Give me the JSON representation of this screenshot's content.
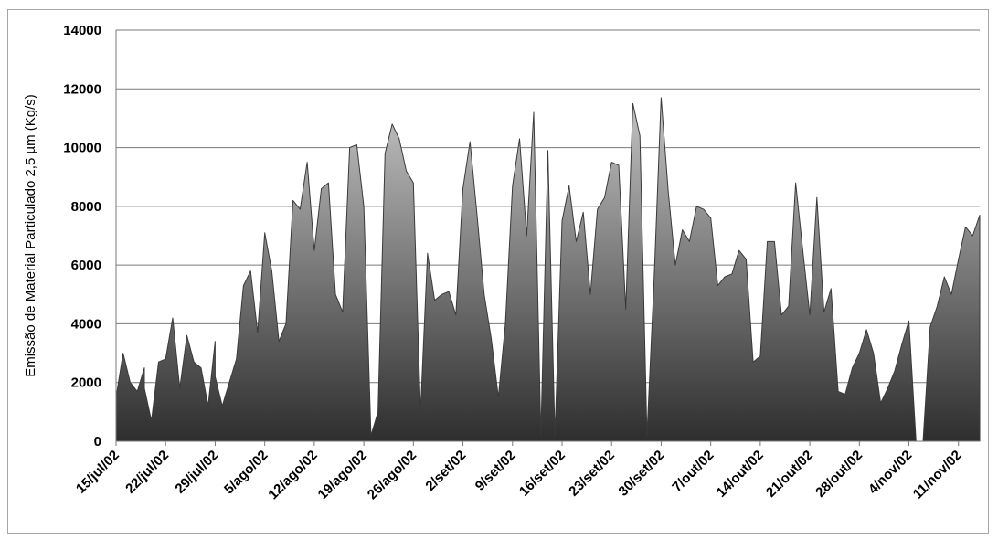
{
  "chart_data": {
    "type": "area",
    "title": "",
    "xlabel": "",
    "ylabel": "Emissão de Material Particulado 2,5 µm (Kg/s)",
    "ylim": [
      0,
      14000
    ],
    "yticks": [
      "0",
      "2000",
      "4000",
      "6000",
      "8000",
      "10000",
      "12000",
      "14000"
    ],
    "grid": true,
    "legend": "none",
    "x_start": "15/jul/02",
    "x_end": "14/nov/02",
    "xticks": [
      "15/jul/02",
      "22/jul/02",
      "29/jul/02",
      "5/ago/02",
      "12/ago/02",
      "19/ago/02",
      "26/ago/02",
      "2/set/02",
      "9/set/02",
      "16/set/02",
      "23/set/02",
      "30/set/02",
      "7/out/02",
      "14/out/02",
      "21/out/02",
      "28/out/02",
      "4/nov/02",
      "11/nov/02"
    ],
    "colors": {
      "fill_top": "#c4c4c4",
      "fill_bottom": "#2e2e2e",
      "edge": "#3a3a3a"
    },
    "series": [
      {
        "points": [
          [
            "15/jul/02",
            2200
          ],
          [
            "15/jul/02",
            1500
          ],
          [
            "16/jul/02",
            3000
          ],
          [
            "17/jul/02",
            2000
          ],
          [
            "18/jul/02",
            1700
          ],
          [
            "19/jul/02",
            2500
          ],
          [
            "19/jul/02",
            1800
          ],
          [
            "20/jul/02",
            700
          ],
          [
            "21/jul/02",
            2700
          ],
          [
            "22/jul/02",
            2800
          ],
          [
            "23/jul/02",
            4200
          ],
          [
            "24/jul/02",
            1800
          ],
          [
            "25/jul/02",
            3600
          ],
          [
            "26/jul/02",
            2700
          ],
          [
            "27/jul/02",
            2500
          ],
          [
            "28/jul/02",
            1200
          ],
          [
            "29/jul/02",
            3400
          ],
          [
            "29/jul/02",
            2200
          ],
          [
            "30/jul/02",
            1200
          ],
          [
            "31/jul/02",
            2000
          ],
          [
            "1/ago/02",
            2800
          ],
          [
            "2/ago/02",
            5300
          ],
          [
            "3/ago/02",
            5800
          ],
          [
            "4/ago/02",
            3700
          ],
          [
            "5/ago/02",
            7100
          ],
          [
            "6/ago/02",
            5800
          ],
          [
            "7/ago/02",
            3400
          ],
          [
            "8/ago/02",
            4000
          ],
          [
            "9/ago/02",
            8200
          ],
          [
            "10/ago/02",
            7900
          ],
          [
            "11/ago/02",
            9500
          ],
          [
            "12/ago/02",
            6500
          ],
          [
            "13/ago/02",
            8600
          ],
          [
            "14/ago/02",
            8800
          ],
          [
            "15/ago/02",
            5000
          ],
          [
            "16/ago/02",
            4400
          ],
          [
            "17/ago/02",
            10000
          ],
          [
            "18/ago/02",
            10100
          ],
          [
            "19/ago/02",
            8000
          ],
          [
            "20/ago/02",
            200
          ],
          [
            "21/ago/02",
            1000
          ],
          [
            "22/ago/02",
            9800
          ],
          [
            "23/ago/02",
            10800
          ],
          [
            "24/ago/02",
            10300
          ],
          [
            "25/ago/02",
            9200
          ],
          [
            "26/ago/02",
            8800
          ],
          [
            "27/ago/02",
            1000
          ],
          [
            "28/ago/02",
            6400
          ],
          [
            "29/ago/02",
            4800
          ],
          [
            "30/ago/02",
            5000
          ],
          [
            "31/ago/02",
            5100
          ],
          [
            "1/set/02",
            4300
          ],
          [
            "2/set/02",
            8600
          ],
          [
            "3/set/02",
            10200
          ],
          [
            "4/set/02",
            7700
          ],
          [
            "5/set/02",
            5000
          ],
          [
            "6/set/02",
            3500
          ],
          [
            "7/set/02",
            1500
          ],
          [
            "8/set/02",
            4000
          ],
          [
            "9/set/02",
            8700
          ],
          [
            "10/set/02",
            10300
          ],
          [
            "11/set/02",
            7000
          ],
          [
            "12/set/02",
            11200
          ],
          [
            "13/set/02",
            200
          ],
          [
            "14/set/02",
            9900
          ],
          [
            "15/set/02",
            200
          ],
          [
            "16/set/02",
            7500
          ],
          [
            "17/set/02",
            8700
          ],
          [
            "18/set/02",
            6800
          ],
          [
            "19/set/02",
            7800
          ],
          [
            "20/set/02",
            5000
          ],
          [
            "21/set/02",
            7900
          ],
          [
            "22/set/02",
            8300
          ],
          [
            "23/set/02",
            9500
          ],
          [
            "24/set/02",
            9400
          ],
          [
            "25/set/02",
            4500
          ],
          [
            "26/set/02",
            11500
          ],
          [
            "27/set/02",
            10400
          ],
          [
            "28/set/02",
            200
          ],
          [
            "29/set/02",
            5500
          ],
          [
            "30/set/02",
            11700
          ],
          [
            "1/out/02",
            8500
          ],
          [
            "2/out/02",
            6000
          ],
          [
            "3/out/02",
            7200
          ],
          [
            "4/out/02",
            6800
          ],
          [
            "5/out/02",
            8000
          ],
          [
            "6/out/02",
            7900
          ],
          [
            "7/out/02",
            7600
          ],
          [
            "8/out/02",
            5300
          ],
          [
            "9/out/02",
            5600
          ],
          [
            "10/out/02",
            5700
          ],
          [
            "11/out/02",
            6500
          ],
          [
            "12/out/02",
            6200
          ],
          [
            "13/out/02",
            2700
          ],
          [
            "14/out/02",
            2900
          ],
          [
            "15/out/02",
            6800
          ],
          [
            "16/out/02",
            6800
          ],
          [
            "17/out/02",
            4300
          ],
          [
            "18/out/02",
            4600
          ],
          [
            "19/out/02",
            8800
          ],
          [
            "20/out/02",
            6500
          ],
          [
            "21/out/02",
            4300
          ],
          [
            "22/out/02",
            8300
          ],
          [
            "23/out/02",
            4400
          ],
          [
            "24/out/02",
            5200
          ],
          [
            "25/out/02",
            1700
          ],
          [
            "26/out/02",
            1600
          ],
          [
            "27/out/02",
            2500
          ],
          [
            "28/out/02",
            3000
          ],
          [
            "29/out/02",
            3800
          ],
          [
            "30/out/02",
            3000
          ],
          [
            "31/out/02",
            1300
          ],
          [
            "1/nov/02",
            1800
          ],
          [
            "2/nov/02",
            2400
          ],
          [
            "3/nov/02",
            3300
          ],
          [
            "4/nov/02",
            4100
          ],
          [
            "5/nov/02",
            0
          ],
          [
            "6/nov/02",
            0
          ],
          [
            "7/nov/02",
            3900
          ],
          [
            "8/nov/02",
            4600
          ],
          [
            "9/nov/02",
            5600
          ],
          [
            "10/nov/02",
            5000
          ],
          [
            "11/nov/02",
            6200
          ],
          [
            "12/nov/02",
            7300
          ],
          [
            "13/nov/02",
            7000
          ],
          [
            "14/nov/02",
            7700
          ]
        ]
      }
    ]
  }
}
